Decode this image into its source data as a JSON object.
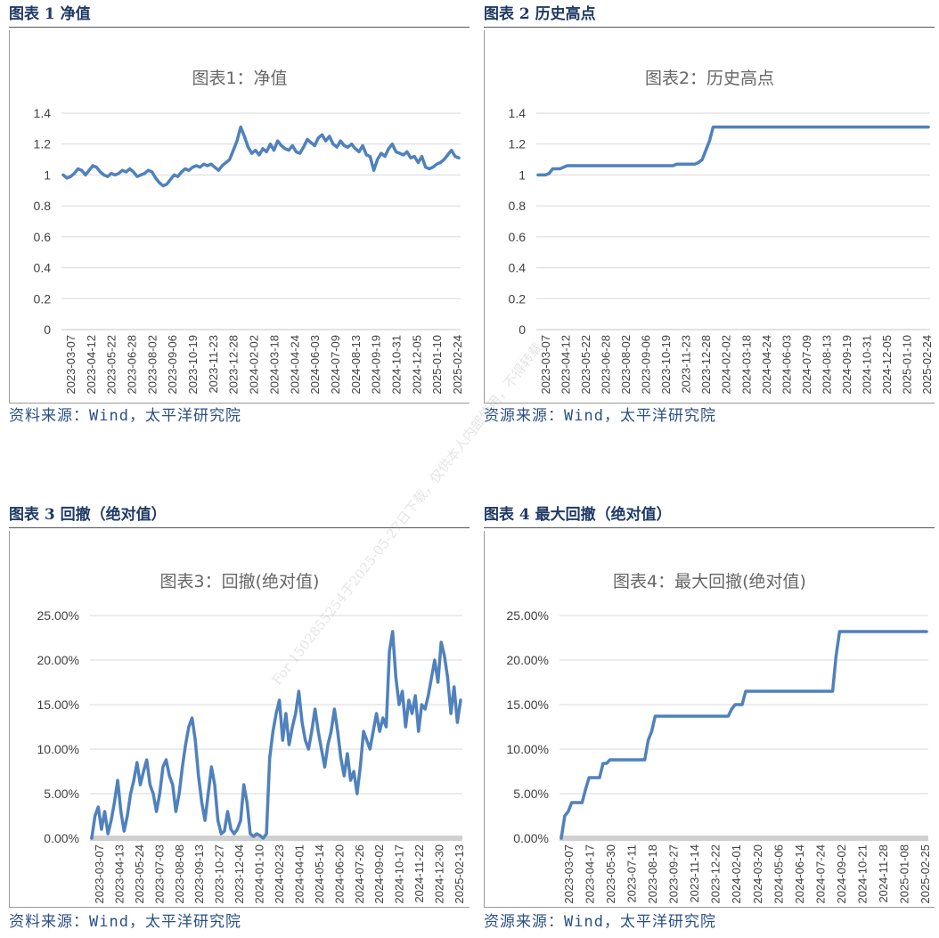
{
  "colors": {
    "line": "#4f81bd",
    "heading": "#1f3a66",
    "source": "#2a4f86",
    "grid": "#d9d9d9"
  },
  "watermark": "For 1502855254于2025-05-27日下载，仅供本人内部使用，不得转载",
  "panels": [
    {
      "heading": "图表 1 净值",
      "source": "资料来源：Wind，太平洋研究院",
      "chart_data": {
        "type": "line",
        "title": "图表1：净值",
        "xlabel": "",
        "ylabel": "",
        "ylim": [
          0,
          1.4
        ],
        "yticks": [
          "0",
          "0.2",
          "0.4",
          "0.6",
          "0.8",
          "1",
          "1.2",
          "1.4"
        ],
        "xticks": [
          "2023-03-07",
          "2023-04-12",
          "2023-05-22",
          "2023-06-28",
          "2023-08-02",
          "2023-09-06",
          "2023-10-19",
          "2023-11-23",
          "2023-12-28",
          "2024-02-02",
          "2024-03-18",
          "2024-04-24",
          "2024-06-03",
          "2024-07-09",
          "2024-08-13",
          "2024-09-19",
          "2024-10-31",
          "2024-12-05",
          "2025-01-10",
          "2025-02-24"
        ],
        "grid": true,
        "legend": "none",
        "series": [
          {
            "values": [
              1.0,
              0.98,
              0.99,
              1.01,
              1.04,
              1.03,
              1.0,
              1.03,
              1.06,
              1.05,
              1.02,
              1.0,
              0.99,
              1.01,
              1.0,
              1.01,
              1.03,
              1.02,
              1.04,
              1.02,
              0.99,
              1.0,
              1.01,
              1.03,
              1.02,
              0.98,
              0.95,
              0.93,
              0.94,
              0.97,
              1.0,
              0.99,
              1.02,
              1.04,
              1.03,
              1.05,
              1.06,
              1.05,
              1.07,
              1.06,
              1.07,
              1.05,
              1.03,
              1.06,
              1.08,
              1.1,
              1.16,
              1.22,
              1.31,
              1.25,
              1.18,
              1.14,
              1.16,
              1.13,
              1.17,
              1.15,
              1.2,
              1.16,
              1.22,
              1.19,
              1.17,
              1.16,
              1.19,
              1.15,
              1.14,
              1.18,
              1.23,
              1.21,
              1.19,
              1.24,
              1.26,
              1.22,
              1.25,
              1.2,
              1.18,
              1.22,
              1.19,
              1.18,
              1.2,
              1.17,
              1.15,
              1.19,
              1.13,
              1.12,
              1.03,
              1.1,
              1.14,
              1.12,
              1.17,
              1.2,
              1.15,
              1.14,
              1.13,
              1.15,
              1.11,
              1.12,
              1.08,
              1.12,
              1.05,
              1.04,
              1.05,
              1.07,
              1.08,
              1.1,
              1.13,
              1.16,
              1.12,
              1.11
            ]
          }
        ]
      }
    },
    {
      "heading": "图表 2 历史高点",
      "source": "资源来源：Wind，太平洋研究院",
      "chart_data": {
        "type": "line",
        "title": "图表2：历史高点",
        "xlabel": "",
        "ylabel": "",
        "ylim": [
          0,
          1.4
        ],
        "yticks": [
          "0",
          "0.2",
          "0.4",
          "0.6",
          "0.8",
          "1",
          "1.2",
          "1.4"
        ],
        "xticks": [
          "2023-03-07",
          "2023-04-12",
          "2023-05-22",
          "2023-06-28",
          "2023-08-02",
          "2023-09-06",
          "2023-10-19",
          "2023-11-23",
          "2023-12-28",
          "2024-02-02",
          "2024-03-18",
          "2024-04-24",
          "2024-06-03",
          "2024-07-09",
          "2024-08-13",
          "2024-09-19",
          "2024-10-31",
          "2024-12-05",
          "2025-01-10",
          "2025-02-24"
        ],
        "grid": true,
        "legend": "none",
        "series": [
          {
            "values": [
              1.0,
              1.0,
              1.0,
              1.01,
              1.04,
              1.04,
              1.04,
              1.05,
              1.06,
              1.06,
              1.06,
              1.06,
              1.06,
              1.06,
              1.06,
              1.06,
              1.06,
              1.06,
              1.06,
              1.06,
              1.06,
              1.06,
              1.06,
              1.06,
              1.06,
              1.06,
              1.06,
              1.06,
              1.06,
              1.06,
              1.06,
              1.06,
              1.06,
              1.06,
              1.06,
              1.06,
              1.06,
              1.06,
              1.07,
              1.07,
              1.07,
              1.07,
              1.07,
              1.07,
              1.08,
              1.1,
              1.16,
              1.22,
              1.31,
              1.31,
              1.31,
              1.31,
              1.31,
              1.31,
              1.31,
              1.31,
              1.31,
              1.31,
              1.31,
              1.31,
              1.31,
              1.31,
              1.31,
              1.31,
              1.31,
              1.31,
              1.31,
              1.31,
              1.31,
              1.31,
              1.31,
              1.31,
              1.31,
              1.31,
              1.31,
              1.31,
              1.31,
              1.31,
              1.31,
              1.31,
              1.31,
              1.31,
              1.31,
              1.31,
              1.31,
              1.31,
              1.31,
              1.31,
              1.31,
              1.31,
              1.31,
              1.31,
              1.31,
              1.31,
              1.31,
              1.31,
              1.31,
              1.31,
              1.31,
              1.31,
              1.31,
              1.31,
              1.31,
              1.31,
              1.31,
              1.31,
              1.31,
              1.31
            ]
          }
        ]
      }
    },
    {
      "heading": "图表 3 回撤（绝对值）",
      "source": "资料来源：Wind，太平洋研究院",
      "chart_data": {
        "type": "line",
        "title": "图表3：回撤(绝对值)",
        "xlabel": "",
        "ylabel": "",
        "ylim": [
          0,
          25
        ],
        "yticks": [
          "0.00%",
          "5.00%",
          "10.00%",
          "15.00%",
          "20.00%",
          "25.00%"
        ],
        "xticks": [
          "2023-03-07",
          "2023-04-13",
          "2023-05-24",
          "2023-07-03",
          "2023-08-08",
          "2023-09-13",
          "2023-10-27",
          "2023-12-04",
          "2024-01-10",
          "2024-02-23",
          "2024-04-01",
          "2024-05-14",
          "2024-06-20",
          "2024-07-26",
          "2024-09-02",
          "2024-10-17",
          "2024-11-22",
          "2024-12-30",
          "2025-02-13"
        ],
        "grid": true,
        "legend": "none",
        "series": [
          {
            "values": [
              0,
              2.5,
              3.5,
              1,
              3,
              0.5,
              2,
              4,
              6.5,
              3,
              0.8,
              2.5,
              5,
              6.5,
              8.5,
              6,
              7.5,
              8.8,
              6,
              5,
              3,
              5,
              8,
              8.8,
              7,
              6,
              3,
              5,
              8,
              10.5,
              12.5,
              13.5,
              11,
              7,
              4,
              2,
              5,
              8,
              6,
              2,
              0.5,
              0.8,
              3,
              1,
              0.5,
              1,
              2,
              6,
              4,
              0.5,
              0.2,
              0.5,
              0.3,
              0,
              0.5,
              9,
              12,
              14,
              15.5,
              11,
              14,
              10.5,
              12.5,
              14,
              16.5,
              13,
              11,
              10,
              12,
              14.5,
              12,
              10,
              8,
              10.5,
              12,
              14.5,
              12,
              9,
              7,
              9.5,
              6.5,
              7.5,
              5,
              8,
              12,
              11,
              10,
              12,
              14,
              12,
              13.5,
              12.5,
              21,
              23.2,
              18,
              15,
              16.5,
              12.5,
              15.5,
              14,
              16,
              12,
              15,
              14.5,
              16,
              18,
              20,
              17.5,
              22,
              20.5,
              18,
              14,
              17,
              13,
              15.5
            ]
          }
        ]
      }
    },
    {
      "heading": "图表 4 最大回撤（绝对值）",
      "source": "资源来源：Wind，太平洋研究院",
      "chart_data": {
        "type": "line",
        "title": "图表4：最大回撤(绝对值)",
        "xlabel": "",
        "ylabel": "",
        "ylim": [
          0,
          25
        ],
        "yticks": [
          "0.00%",
          "5.00%",
          "10.00%",
          "15.00%",
          "20.00%",
          "25.00%"
        ],
        "xticks": [
          "2023-03-07",
          "2023-04-17",
          "2023-05-30",
          "2023-07-11",
          "2023-08-18",
          "2023-09-27",
          "2023-11-14",
          "2023-12-22",
          "2024-02-01",
          "2024-03-20",
          "2024-05-06",
          "2024-06-14",
          "2024-07-24",
          "2024-09-02",
          "2024-10-21",
          "2024-11-28",
          "2025-01-08",
          "2025-02-25"
        ],
        "grid": true,
        "legend": "none",
        "series": [
          {
            "values": [
              0,
              2.5,
              3,
              4,
              4,
              4,
              4,
              5.5,
              6.8,
              6.8,
              6.8,
              6.8,
              8.4,
              8.4,
              8.8,
              8.8,
              8.8,
              8.8,
              8.8,
              8.8,
              8.8,
              8.8,
              8.8,
              8.8,
              8.8,
              11,
              12,
              13.7,
              13.7,
              13.7,
              13.7,
              13.7,
              13.7,
              13.7,
              13.7,
              13.7,
              13.7,
              13.7,
              13.7,
              13.7,
              13.7,
              13.7,
              13.7,
              13.7,
              13.7,
              13.7,
              13.7,
              13.7,
              13.7,
              14.5,
              15,
              15,
              15,
              16.5,
              16.5,
              16.5,
              16.5,
              16.5,
              16.5,
              16.5,
              16.5,
              16.5,
              16.5,
              16.5,
              16.5,
              16.5,
              16.5,
              16.5,
              16.5,
              16.5,
              16.5,
              16.5,
              16.5,
              16.5,
              16.5,
              16.5,
              16.5,
              16.5,
              16.5,
              20.5,
              23.2,
              23.2,
              23.2,
              23.2,
              23.2,
              23.2,
              23.2,
              23.2,
              23.2,
              23.2,
              23.2,
              23.2,
              23.2,
              23.2,
              23.2,
              23.2,
              23.2,
              23.2,
              23.2,
              23.2,
              23.2,
              23.2,
              23.2,
              23.2,
              23.2,
              23.2
            ]
          }
        ]
      }
    }
  ]
}
